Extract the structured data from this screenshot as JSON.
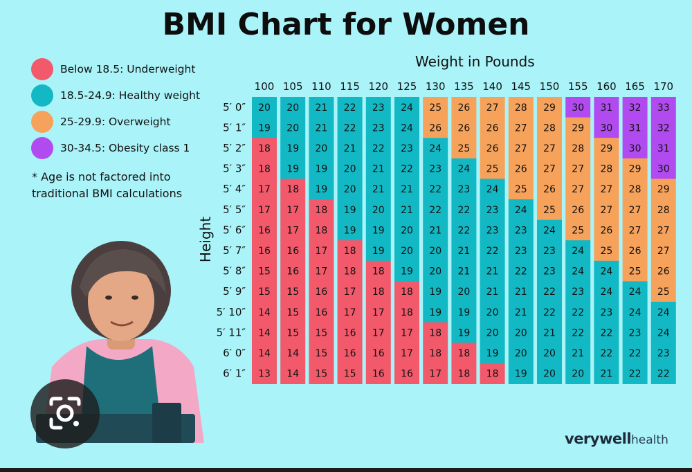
{
  "title": "BMI Chart for Women",
  "legend": [
    {
      "label": "Below 18.5: Underweight",
      "color": "#f25a6b"
    },
    {
      "label": "18.5-24.9: Healthy weight",
      "color": "#12b9c4"
    },
    {
      "label": "25-29.9: Overweight",
      "color": "#f7a25b"
    },
    {
      "label": "30-34.5: Obesity class 1",
      "color": "#b14bf0"
    }
  ],
  "footnote": "* Age is not factored into traditional BMI calculations",
  "brand": {
    "name_bold": "verywell",
    "name_light": "health"
  },
  "chart_data": {
    "type": "table",
    "title": "BMI Chart for Women",
    "xlabel": "Weight in Pounds",
    "ylabel": "Height",
    "weights": [
      "100",
      "105",
      "110",
      "115",
      "120",
      "125",
      "130",
      "135",
      "140",
      "145",
      "150",
      "155",
      "160",
      "165",
      "170"
    ],
    "heights": [
      "5′ 0″",
      "5′ 1″",
      "5′ 2″",
      "5′ 3″",
      "5′ 4″",
      "5′ 5″",
      "5′ 6″",
      "5′ 7″",
      "5′ 8″",
      "5′ 9″",
      "5′ 10″",
      "5′ 11″",
      "6′ 0″",
      "6′ 1″"
    ],
    "values": [
      [
        20,
        20,
        21,
        22,
        23,
        24,
        25,
        26,
        27,
        28,
        29,
        30,
        31,
        32,
        33
      ],
      [
        19,
        20,
        21,
        22,
        23,
        24,
        26,
        26,
        26,
        27,
        28,
        29,
        30,
        31,
        32
      ],
      [
        18,
        19,
        20,
        21,
        22,
        23,
        24,
        25,
        26,
        27,
        27,
        28,
        29,
        30,
        31
      ],
      [
        18,
        19,
        19,
        20,
        21,
        22,
        23,
        24,
        25,
        26,
        27,
        27,
        28,
        29,
        30
      ],
      [
        17,
        18,
        19,
        20,
        21,
        21,
        22,
        23,
        24,
        25,
        26,
        27,
        27,
        28,
        29
      ],
      [
        17,
        17,
        18,
        19,
        20,
        21,
        22,
        22,
        23,
        24,
        25,
        26,
        27,
        27,
        28
      ],
      [
        16,
        17,
        18,
        19,
        19,
        20,
        21,
        22,
        23,
        23,
        24,
        25,
        26,
        27,
        27
      ],
      [
        16,
        16,
        17,
        18,
        19,
        20,
        20,
        21,
        22,
        23,
        23,
        24,
        25,
        26,
        27
      ],
      [
        15,
        16,
        17,
        18,
        18,
        19,
        20,
        21,
        21,
        22,
        23,
        24,
        24,
        25,
        26
      ],
      [
        15,
        15,
        16,
        17,
        18,
        18,
        19,
        20,
        21,
        21,
        22,
        23,
        24,
        24,
        25
      ],
      [
        14,
        15,
        16,
        17,
        17,
        18,
        19,
        19,
        20,
        21,
        22,
        22,
        23,
        24,
        24
      ],
      [
        14,
        15,
        15,
        16,
        17,
        17,
        18,
        19,
        20,
        20,
        21,
        22,
        22,
        23,
        24
      ],
      [
        14,
        14,
        15,
        16,
        16,
        17,
        18,
        18,
        19,
        20,
        20,
        21,
        22,
        22,
        23
      ],
      [
        13,
        14,
        15,
        15,
        16,
        16,
        17,
        18,
        18,
        19,
        20,
        20,
        21,
        22,
        22
      ]
    ],
    "categories": [
      [
        1,
        1,
        1,
        1,
        1,
        1,
        2,
        2,
        2,
        2,
        2,
        3,
        3,
        3,
        3
      ],
      [
        1,
        1,
        1,
        1,
        1,
        1,
        2,
        2,
        2,
        2,
        2,
        2,
        3,
        3,
        3
      ],
      [
        0,
        1,
        1,
        1,
        1,
        1,
        1,
        2,
        2,
        2,
        2,
        2,
        2,
        3,
        3
      ],
      [
        0,
        1,
        1,
        1,
        1,
        1,
        1,
        1,
        2,
        2,
        2,
        2,
        2,
        2,
        3
      ],
      [
        0,
        0,
        1,
        1,
        1,
        1,
        1,
        1,
        1,
        2,
        2,
        2,
        2,
        2,
        2
      ],
      [
        0,
        0,
        0,
        1,
        1,
        1,
        1,
        1,
        1,
        1,
        2,
        2,
        2,
        2,
        2
      ],
      [
        0,
        0,
        0,
        1,
        1,
        1,
        1,
        1,
        1,
        1,
        1,
        2,
        2,
        2,
        2
      ],
      [
        0,
        0,
        0,
        0,
        1,
        1,
        1,
        1,
        1,
        1,
        1,
        1,
        2,
        2,
        2
      ],
      [
        0,
        0,
        0,
        0,
        0,
        1,
        1,
        1,
        1,
        1,
        1,
        1,
        1,
        2,
        2
      ],
      [
        0,
        0,
        0,
        0,
        0,
        0,
        1,
        1,
        1,
        1,
        1,
        1,
        1,
        1,
        2
      ],
      [
        0,
        0,
        0,
        0,
        0,
        0,
        1,
        1,
        1,
        1,
        1,
        1,
        1,
        1,
        1
      ],
      [
        0,
        0,
        0,
        0,
        0,
        0,
        0,
        1,
        1,
        1,
        1,
        1,
        1,
        1,
        1
      ],
      [
        0,
        0,
        0,
        0,
        0,
        0,
        0,
        0,
        1,
        1,
        1,
        1,
        1,
        1,
        1
      ],
      [
        0,
        0,
        0,
        0,
        0,
        0,
        0,
        0,
        0,
        1,
        1,
        1,
        1,
        1,
        1
      ]
    ],
    "category_colors": [
      "#f25a6b",
      "#12b9c4",
      "#f7a25b",
      "#b14bf0"
    ]
  }
}
